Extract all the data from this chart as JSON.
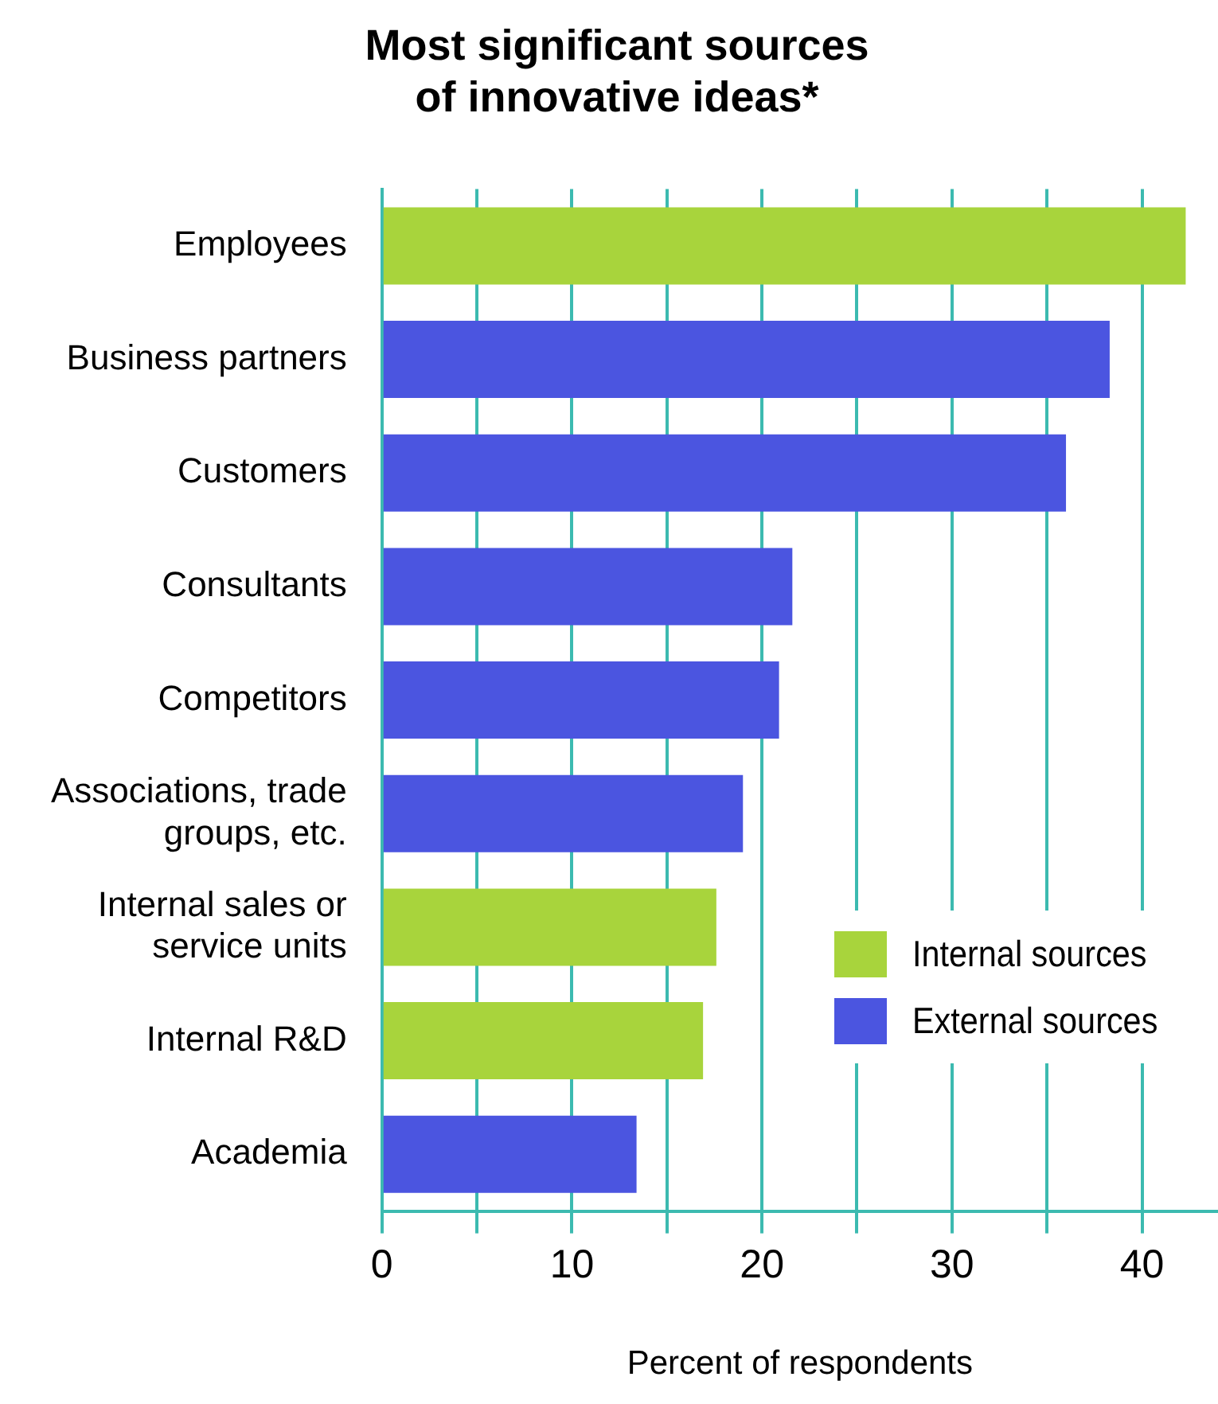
{
  "chart_data": {
    "type": "bar",
    "orientation": "horizontal",
    "title": "Most significant sources\nof innovative ideas*",
    "xlabel": "Percent of respondents",
    "categories": [
      "Employees",
      "Business partners",
      "Customers",
      "Consultants",
      "Competitors",
      "Associations, trade groups, etc.",
      "Internal sales or service units",
      "Internal R&D",
      "Academia"
    ],
    "series": [
      {
        "name": "Internal sources",
        "color": "#a8d43c",
        "values": [
          42.3,
          null,
          null,
          null,
          null,
          null,
          17.6,
          16.9,
          null
        ]
      },
      {
        "name": "External sources",
        "color": "#4b55e0",
        "values": [
          null,
          38.3,
          36.0,
          21.6,
          20.9,
          19.0,
          null,
          null,
          13.4
        ]
      }
    ],
    "xlim": [
      0,
      44
    ],
    "xticks": [
      0,
      {
        "value": 5,
        "label": null
      },
      10,
      {
        "value": 15,
        "label": null
      },
      20,
      {
        "value": 25,
        "label": null
      },
      30,
      {
        "value": 35,
        "label": null
      },
      40
    ],
    "grid": "x",
    "legend": "bottom right"
  }
}
